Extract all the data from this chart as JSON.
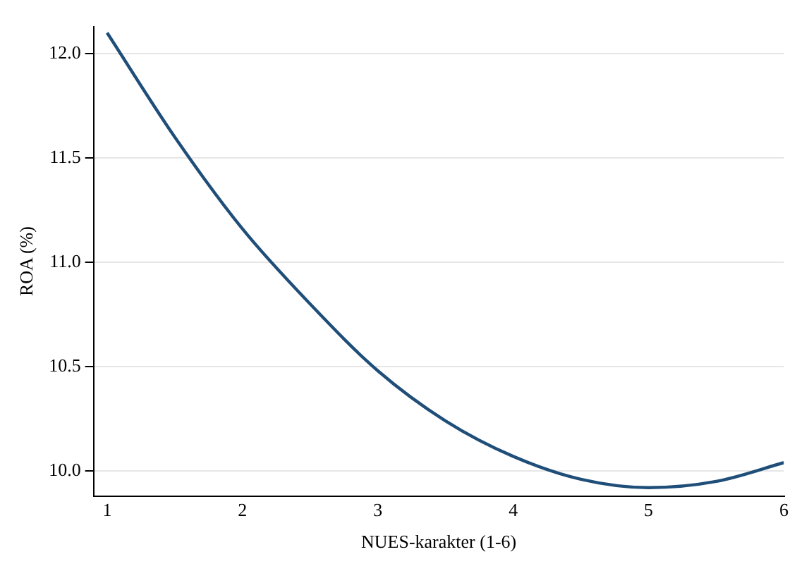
{
  "chart_data": {
    "type": "line",
    "xlabel": "NUES-karakter (1-6)",
    "ylabel": "ROA (%)",
    "x": [
      1,
      1.5,
      2,
      2.5,
      3,
      3.5,
      4,
      4.5,
      5,
      5.5,
      6
    ],
    "series": [
      {
        "color": "#1f4e79",
        "values": [
          12.1,
          11.6,
          11.16,
          10.8,
          10.48,
          10.24,
          10.07,
          9.96,
          9.92,
          9.95,
          10.04
        ]
      }
    ],
    "xlim": [
      0.9,
      6
    ],
    "xticks": [
      1,
      2,
      3,
      4,
      5,
      6
    ],
    "ylim": [
      9.88,
      12.13
    ],
    "yticks": [
      {
        "value": 10,
        "label": "10.0"
      },
      {
        "value": 10.5,
        "label": "10.5"
      },
      {
        "value": 11,
        "label": "11.0"
      },
      {
        "value": 11.5,
        "label": "11.5"
      },
      {
        "value": 12,
        "label": "12.0"
      }
    ],
    "grid": "y",
    "legend": false,
    "marker": "none",
    "line_style": "solid"
  }
}
